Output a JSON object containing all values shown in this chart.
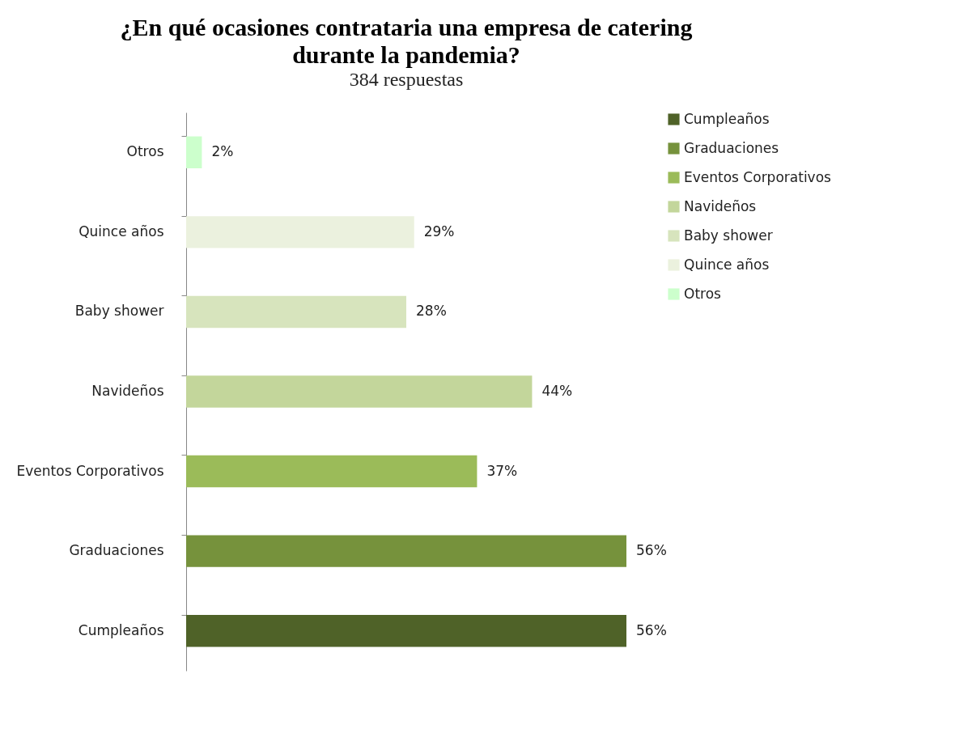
{
  "chart_data": {
    "type": "bar",
    "orientation": "horizontal",
    "title": "¿En qué ocasiones contrataria una empresa de catering durante la pandemia?",
    "subtitle": "384 respuestas",
    "categories": [
      "Otros",
      "Quince años",
      "Baby shower",
      "Navideños",
      "Eventos Corporativos",
      "Graduaciones",
      "Cumpleaños"
    ],
    "series": [
      {
        "name": "Cumpleaños",
        "color": "#4f6228",
        "values": [
          null,
          null,
          null,
          null,
          null,
          null,
          56
        ],
        "value_labels": [
          null,
          null,
          null,
          null,
          null,
          null,
          "56%"
        ]
      },
      {
        "name": "Graduaciones",
        "color": "#76923c",
        "values": [
          null,
          null,
          null,
          null,
          null,
          56,
          null
        ],
        "value_labels": [
          null,
          null,
          null,
          null,
          null,
          "56%",
          null
        ]
      },
      {
        "name": "Eventos Corporativos",
        "color": "#9bbb59",
        "values": [
          null,
          null,
          null,
          null,
          37,
          null,
          null
        ],
        "value_labels": [
          null,
          null,
          null,
          null,
          "37%",
          null,
          null
        ]
      },
      {
        "name": "Navideños",
        "color": "#c3d69b",
        "values": [
          null,
          null,
          null,
          44,
          null,
          null,
          null
        ],
        "value_labels": [
          null,
          null,
          null,
          "44%",
          null,
          null,
          null
        ]
      },
      {
        "name": "Baby shower",
        "color": "#d7e4bd",
        "values": [
          null,
          null,
          28,
          null,
          null,
          null,
          null
        ],
        "value_labels": [
          null,
          null,
          "28%",
          null,
          null,
          null,
          null
        ]
      },
      {
        "name": "Quince años",
        "color": "#ebf1de",
        "values": [
          null,
          29,
          null,
          null,
          null,
          null,
          null
        ],
        "value_labels": [
          null,
          "29%",
          null,
          null,
          null,
          null,
          null
        ]
      },
      {
        "name": "Otros",
        "color": "#ccffcc",
        "values": [
          2,
          null,
          null,
          null,
          null,
          null,
          null
        ],
        "value_labels": [
          "2%",
          null,
          null,
          null,
          null,
          null,
          null
        ]
      }
    ],
    "tick_labels": "y",
    "legend": "right"
  }
}
